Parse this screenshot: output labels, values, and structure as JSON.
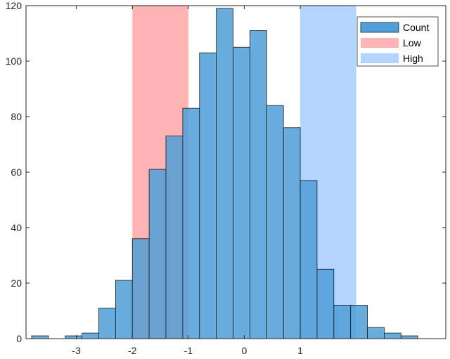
{
  "chart_data": {
    "type": "bar",
    "subtype": "histogram",
    "title": "",
    "xlabel": "",
    "ylabel": "",
    "xlim": [
      -3.9,
      3.6
    ],
    "ylim": [
      0,
      120
    ],
    "bin_width": 0.3,
    "bin_edges": [
      -3.8,
      -3.5,
      -3.2,
      -2.9,
      -2.6,
      -2.3,
      -2.0,
      -1.7,
      -1.4,
      -1.1,
      -0.8,
      -0.5,
      -0.2,
      0.1,
      0.4,
      0.7,
      1.0,
      1.3,
      1.6,
      1.9,
      2.2,
      2.5,
      2.8,
      3.1,
      3.4
    ],
    "series": [
      {
        "name": "Count",
        "values": [
          1,
          0,
          1,
          2,
          11,
          21,
          36,
          61,
          73,
          83,
          103,
          119,
          105,
          111,
          84,
          76,
          57,
          25,
          12,
          12,
          4,
          2,
          1,
          0
        ]
      }
    ],
    "regions": [
      {
        "name": "Low",
        "x_start": -2.0,
        "x_end": -1.0,
        "color": "#ffb3b3"
      },
      {
        "name": "High",
        "x_start": 1.0,
        "x_end": 2.0,
        "color": "#b3d4ff"
      }
    ],
    "x_ticks": [
      {
        "value": -3,
        "label": "-3"
      },
      {
        "value": -2,
        "label": "-2"
      },
      {
        "value": -1,
        "label": "-1"
      },
      {
        "value": 0,
        "label": "0"
      },
      {
        "value": 1,
        "label": "1"
      }
    ],
    "y_ticks": [
      {
        "value": 0,
        "label": "0"
      },
      {
        "value": 20,
        "label": "20"
      },
      {
        "value": 40,
        "label": "40"
      },
      {
        "value": 60,
        "label": "60"
      },
      {
        "value": 80,
        "label": "80"
      },
      {
        "value": 100,
        "label": "100"
      },
      {
        "value": 120,
        "label": "120"
      }
    ],
    "legend": {
      "position": "top-right",
      "entries": [
        {
          "label": "Count",
          "color": "#4f9fd8"
        },
        {
          "label": "Low",
          "color": "#ffb3b3"
        },
        {
          "label": "High",
          "color": "#b3d4ff"
        }
      ]
    },
    "colors": {
      "bar_fill": "#4f9fd8",
      "bar_edge": "#1a1a1a",
      "axis": "#262626"
    }
  }
}
